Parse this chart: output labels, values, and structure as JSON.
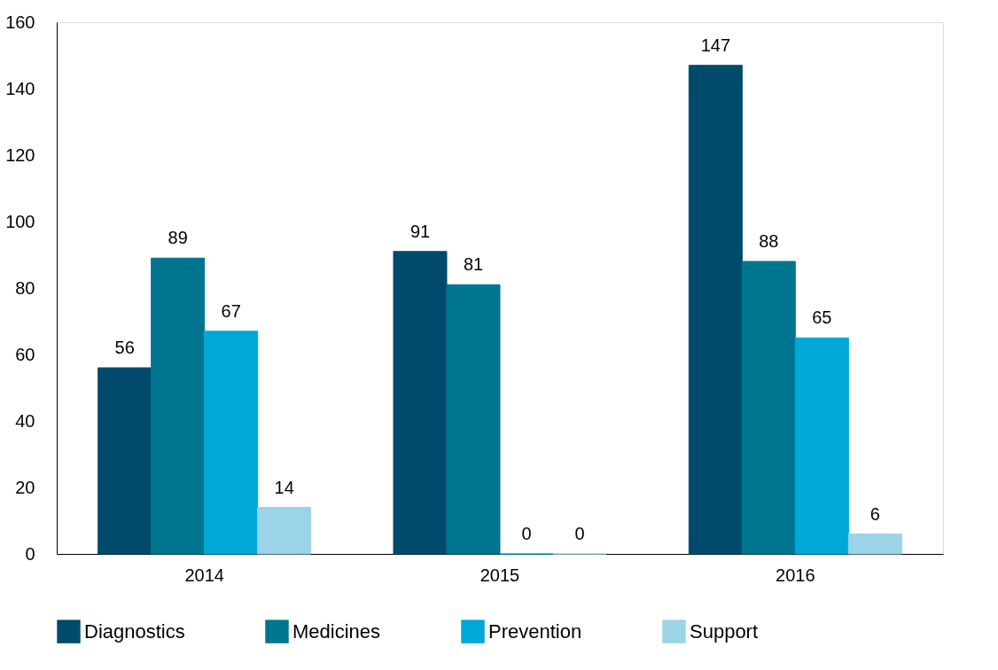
{
  "chart_data": {
    "type": "bar",
    "categories": [
      "2014",
      "2015",
      "2016"
    ],
    "series": [
      {
        "name": "Diagnostics",
        "color": "#004b6b",
        "values": [
          56,
          91,
          147
        ]
      },
      {
        "name": "Medicines",
        "color": "#00758f",
        "values": [
          89,
          81,
          88
        ]
      },
      {
        "name": "Prevention",
        "color": "#00a8d9",
        "values": [
          67,
          0,
          65
        ]
      },
      {
        "name": "Support",
        "color": "#9bd4e6",
        "values": [
          14,
          0,
          6
        ]
      }
    ],
    "ylim": [
      0,
      160
    ],
    "yticks": [
      0,
      20,
      40,
      60,
      80,
      100,
      120,
      140,
      160
    ],
    "grid": false,
    "legend": "bottom",
    "data_labels": true
  }
}
